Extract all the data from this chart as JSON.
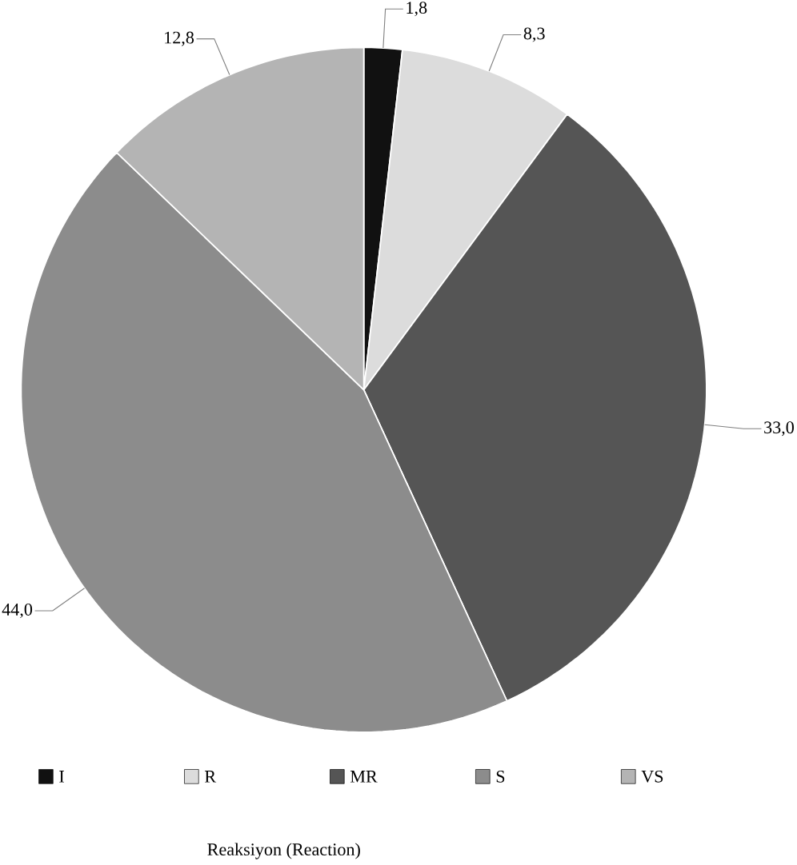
{
  "chart_data": {
    "type": "pie",
    "title": "Reaksiyon (Reaction)",
    "categories": [
      "I",
      "R",
      "MR",
      "S",
      "VS"
    ],
    "values": [
      1.8,
      8.3,
      33.0,
      44.0,
      12.8
    ],
    "value_labels": [
      "1,8",
      "8,3",
      "33,0",
      "44,0",
      "12,8"
    ],
    "colors": [
      "#111111",
      "#dcdcdc",
      "#555555",
      "#8c8c8c",
      "#b4b4b4"
    ],
    "legend": "bottom"
  }
}
